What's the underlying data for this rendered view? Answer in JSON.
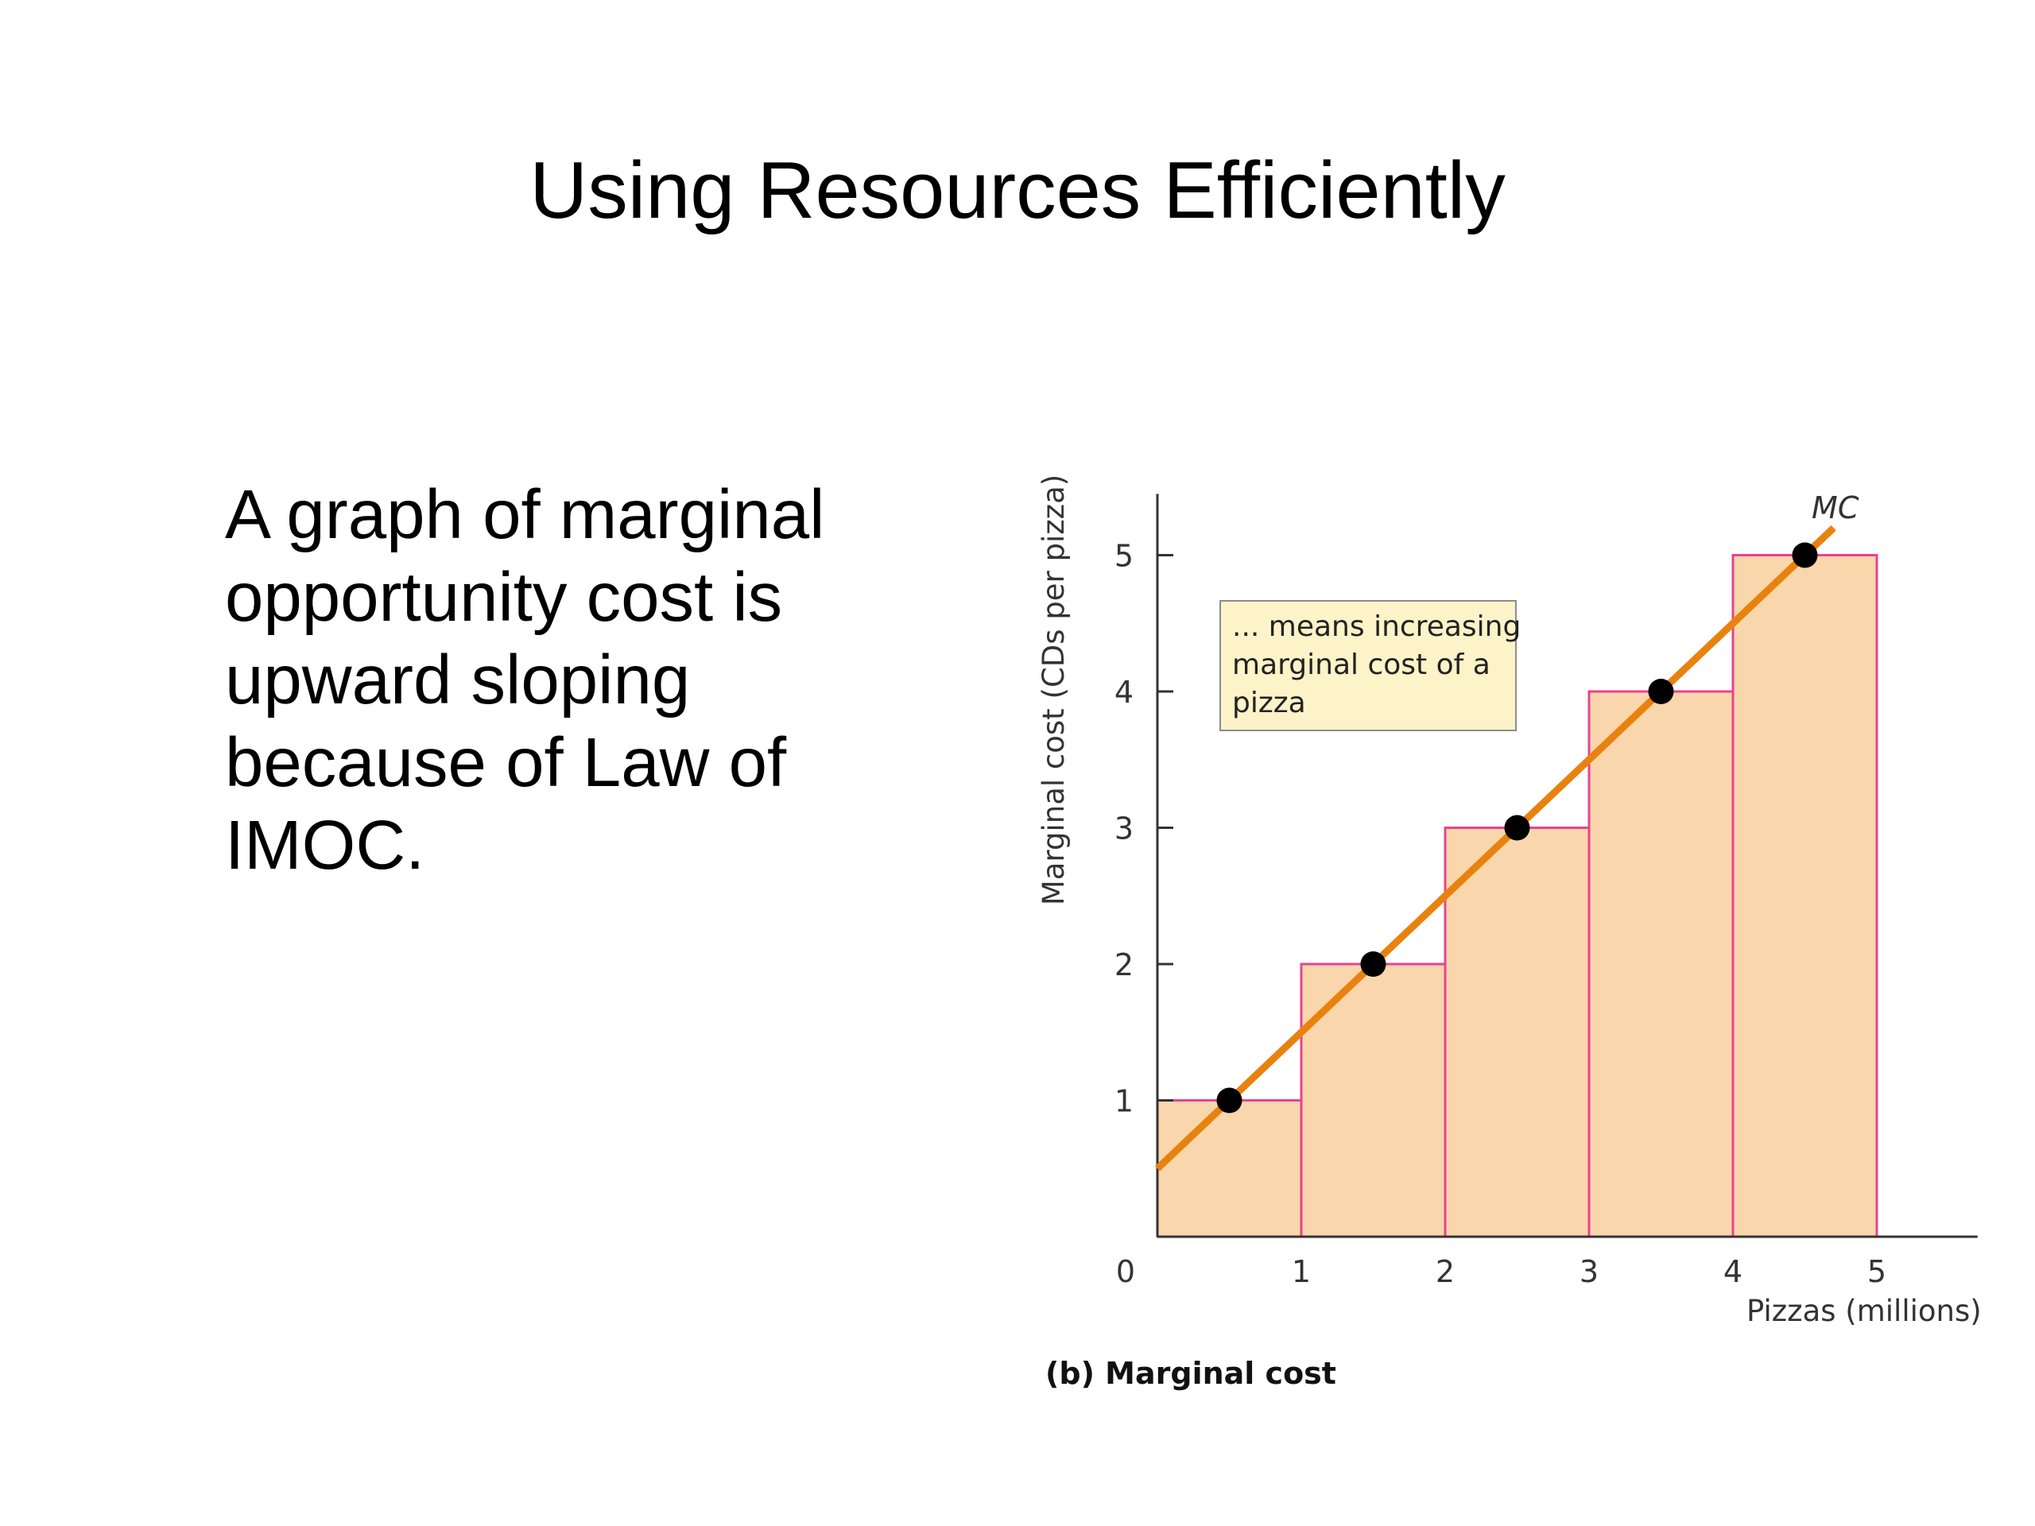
{
  "slide": {
    "title": "Using Resources Efficiently",
    "body_lines": [
      "A graph of marginal",
      "opportunity cost is",
      "upward sloping",
      "because of Law of",
      "IMOC."
    ]
  },
  "chart_data": {
    "type": "bar",
    "caption": "(b) Marginal cost",
    "xlabel": "Pizzas (millions)",
    "ylabel": "Marginal cost (CDs per pizza)",
    "x_ticks": [
      "0",
      "1",
      "2",
      "3",
      "4",
      "5"
    ],
    "y_ticks": [
      "1",
      "2",
      "3",
      "4",
      "5"
    ],
    "xlim": [
      0,
      5.7
    ],
    "ylim": [
      0,
      5.45
    ],
    "categories": [
      "0–1",
      "1–2",
      "2–3",
      "3–4",
      "4–5"
    ],
    "bar_edges": [
      0,
      1,
      2,
      3,
      4,
      5
    ],
    "values": [
      1,
      2,
      3,
      4,
      5
    ],
    "points": [
      {
        "x": 0.5,
        "y": 1
      },
      {
        "x": 1.5,
        "y": 2
      },
      {
        "x": 2.5,
        "y": 3
      },
      {
        "x": 3.5,
        "y": 4
      },
      {
        "x": 4.5,
        "y": 5
      }
    ],
    "line": {
      "name": "MC",
      "from": {
        "x": 0,
        "y": 0.5
      },
      "to": {
        "x": 4.7,
        "y": 5.2
      }
    },
    "annotation": [
      "... means increasing",
      "marginal cost of a",
      "pizza"
    ],
    "colors": {
      "bar_fill": "#f9d6ac",
      "bar_edge": "#e8438f",
      "line": "#e8820e",
      "points": "#000000",
      "axis": "#333333",
      "note_fill": "#fdf3c8"
    }
  }
}
